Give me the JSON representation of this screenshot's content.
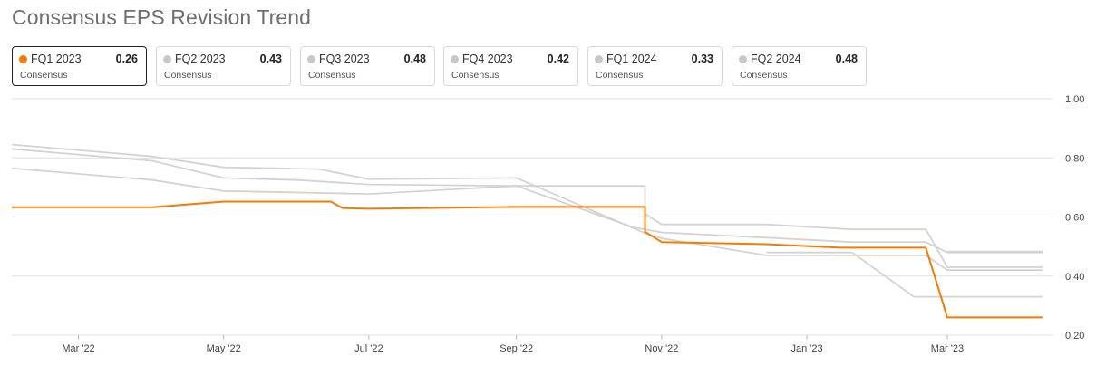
{
  "title": "Consensus EPS Revision Trend",
  "tabs": [
    {
      "label": "FQ1 2023",
      "value": "0.26",
      "sub": "Consensus",
      "active": true,
      "color": "#f57c00"
    },
    {
      "label": "FQ2 2023",
      "value": "0.43",
      "sub": "Consensus",
      "active": false,
      "color": "#c8c8c8"
    },
    {
      "label": "FQ3 2023",
      "value": "0.48",
      "sub": "Consensus",
      "active": false,
      "color": "#c8c8c8"
    },
    {
      "label": "FQ4 2023",
      "value": "0.42",
      "sub": "Consensus",
      "active": false,
      "color": "#c8c8c8"
    },
    {
      "label": "FQ1 2024",
      "value": "0.33",
      "sub": "Consensus",
      "active": false,
      "color": "#c8c8c8"
    },
    {
      "label": "FQ2 2024",
      "value": "0.48",
      "sub": "Consensus",
      "active": false,
      "color": "#c8c8c8"
    }
  ],
  "chart_data": {
    "type": "line",
    "title": "Consensus EPS Revision Trend",
    "xlabel": "",
    "ylabel": "",
    "ylim": [
      0.2,
      1.0
    ],
    "xlim": [
      "2022-02-01",
      "2023-04-10"
    ],
    "y_ticks": [
      "1.00",
      "0.80",
      "0.60",
      "0.40",
      "0.20"
    ],
    "x_ticks": [
      {
        "date": "2022-03-01",
        "label": "Mar '22"
      },
      {
        "date": "2022-05-01",
        "label": "May '22"
      },
      {
        "date": "2022-07-01",
        "label": "Jul '22"
      },
      {
        "date": "2022-09-01",
        "label": "Sep '22"
      },
      {
        "date": "2022-11-01",
        "label": "Nov '22"
      },
      {
        "date": "2023-01-01",
        "label": "Jan '23"
      },
      {
        "date": "2023-03-01",
        "label": "Mar '23"
      }
    ],
    "grid": true,
    "colors": {
      "active": "#f57c00",
      "inactive": "#d3d3d3",
      "grid": "#e0e0e0"
    },
    "series": [
      {
        "name": "FQ2 2023",
        "color": "#d3d3d3",
        "points": [
          [
            "2022-02-01",
            0.765
          ],
          [
            "2022-04-01",
            0.725
          ],
          [
            "2022-05-01",
            0.688
          ],
          [
            "2022-07-01",
            0.678
          ],
          [
            "2022-09-01",
            0.705
          ],
          [
            "2022-10-25",
            0.705
          ],
          [
            "2022-10-25",
            0.61
          ],
          [
            "2022-11-01",
            0.575
          ],
          [
            "2022-12-15",
            0.575
          ],
          [
            "2023-01-20",
            0.558
          ],
          [
            "2023-02-20",
            0.558
          ],
          [
            "2023-03-01",
            0.43
          ],
          [
            "2023-04-10",
            0.43
          ]
        ]
      },
      {
        "name": "FQ3 2023",
        "color": "#d3d3d3",
        "points": [
          [
            "2022-02-01",
            0.83
          ],
          [
            "2022-04-01",
            0.79
          ],
          [
            "2022-05-01",
            0.732
          ],
          [
            "2022-06-01",
            0.725
          ],
          [
            "2022-07-01",
            0.71
          ],
          [
            "2022-09-01",
            0.705
          ],
          [
            "2022-10-20",
            0.565
          ],
          [
            "2022-11-01",
            0.548
          ],
          [
            "2022-12-15",
            0.53
          ],
          [
            "2023-01-20",
            0.515
          ],
          [
            "2023-02-20",
            0.515
          ],
          [
            "2023-03-01",
            0.48
          ],
          [
            "2023-04-10",
            0.48
          ]
        ]
      },
      {
        "name": "FQ4 2023",
        "color": "#d3d3d3",
        "points": [
          [
            "2022-02-01",
            0.845
          ],
          [
            "2022-04-01",
            0.805
          ],
          [
            "2022-05-01",
            0.768
          ],
          [
            "2022-06-10",
            0.762
          ],
          [
            "2022-07-01",
            0.728
          ],
          [
            "2022-09-01",
            0.732
          ],
          [
            "2022-10-25",
            0.545
          ],
          [
            "2022-11-01",
            0.528
          ],
          [
            "2022-12-15",
            0.47
          ],
          [
            "2023-01-20",
            0.47
          ],
          [
            "2023-02-20",
            0.47
          ],
          [
            "2023-03-01",
            0.42
          ],
          [
            "2023-04-10",
            0.42
          ]
        ]
      },
      {
        "name": "FQ1 2024",
        "color": "#d3d3d3",
        "points": [
          [
            "2022-12-15",
            0.48
          ],
          [
            "2023-01-20",
            0.48
          ],
          [
            "2023-02-15",
            0.33
          ],
          [
            "2023-04-10",
            0.33
          ]
        ]
      },
      {
        "name": "FQ2 2024",
        "color": "#d3d3d3",
        "points": [
          [
            "2023-03-01",
            0.483
          ],
          [
            "2023-04-10",
            0.483
          ]
        ]
      },
      {
        "name": "FQ1 2023",
        "color": "#f57c00",
        "points": [
          [
            "2022-02-01",
            0.633
          ],
          [
            "2022-04-01",
            0.633
          ],
          [
            "2022-05-01",
            0.652
          ],
          [
            "2022-06-15",
            0.652
          ],
          [
            "2022-06-20",
            0.63
          ],
          [
            "2022-07-01",
            0.628
          ],
          [
            "2022-09-01",
            0.634
          ],
          [
            "2022-10-25",
            0.634
          ],
          [
            "2022-10-25",
            0.55
          ],
          [
            "2022-11-01",
            0.515
          ],
          [
            "2022-12-15",
            0.508
          ],
          [
            "2023-01-15",
            0.496
          ],
          [
            "2023-02-20",
            0.496
          ],
          [
            "2023-03-01",
            0.26
          ],
          [
            "2023-04-10",
            0.26
          ]
        ]
      }
    ]
  }
}
